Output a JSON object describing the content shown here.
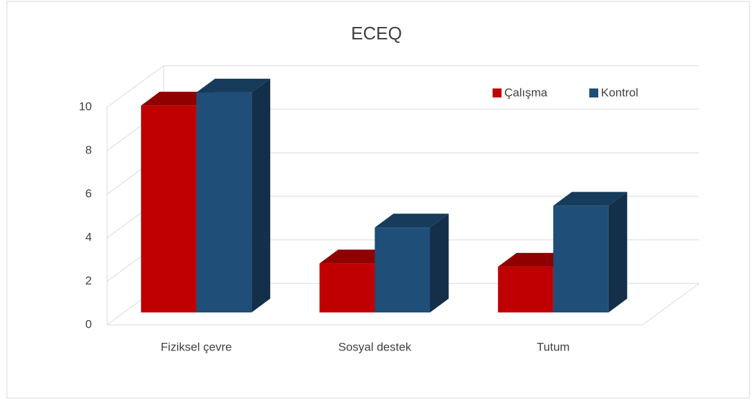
{
  "chart_data": {
    "type": "bar3d",
    "title": "ECEQ",
    "categories": [
      "Fiziksel çevre",
      "Sosyal destek",
      "Tutum"
    ],
    "series": [
      {
        "name": "Çalışma",
        "color": "#c00000",
        "values": [
          9.5,
          2.25,
          2.1
        ]
      },
      {
        "name": "Kontrol",
        "color": "#1f4e79",
        "values": [
          10.1,
          3.9,
          4.9
        ]
      }
    ],
    "ylim": [
      0,
      10
    ],
    "yticks": [
      0,
      2,
      4,
      6,
      8,
      10
    ],
    "grid": true,
    "legend": "top-right"
  }
}
